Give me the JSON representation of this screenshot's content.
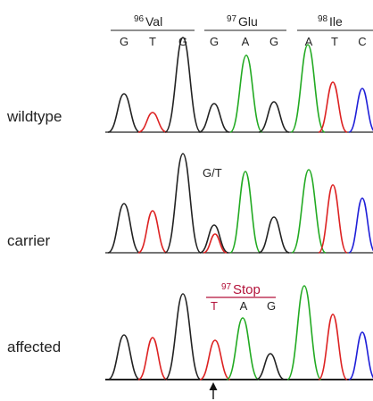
{
  "codons": [
    {
      "number": "96",
      "name": "Val",
      "bases": [
        "G",
        "T",
        "G"
      ]
    },
    {
      "number": "97",
      "name": "Glu",
      "bases": [
        "G",
        "A",
        "G"
      ]
    },
    {
      "number": "98",
      "name": "Ile",
      "bases": [
        "A",
        "T",
        "C"
      ]
    }
  ],
  "rows": [
    {
      "label": "wildtype"
    },
    {
      "label": "carrier",
      "annotation": "G/T"
    },
    {
      "label": "affected",
      "mutation": {
        "number": "97",
        "name": "Stop",
        "bases": [
          "T",
          "A",
          "G"
        ]
      }
    }
  ],
  "colors": {
    "G": "#222222",
    "T": "#dd2222",
    "A": "#22aa22",
    "C": "#1f1fd8",
    "mutation": "#b3123a",
    "text": "#222222"
  },
  "marker": {
    "name": "arrow-up-icon"
  }
}
